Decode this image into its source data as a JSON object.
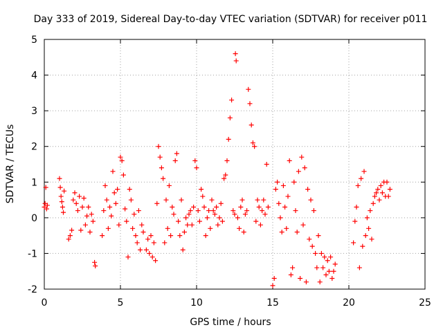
{
  "chart_data": {
    "type": "scatter",
    "title": "Day 333 of 2019, Sidereal Day-to-day VTEC variation (SDTVAR) for receiver p011",
    "xlabel": "GPS time / hours",
    "ylabel": "SDTVAR / TECUs",
    "xlim": [
      0,
      25
    ],
    "ylim": [
      -2,
      5
    ],
    "xticks": [
      0,
      5,
      10,
      15,
      20,
      25
    ],
    "xtick_labels": [
      "0",
      "5",
      "10",
      "15",
      "20",
      "25"
    ],
    "yticks": [
      -2,
      -1,
      0,
      1,
      2,
      3,
      4,
      5
    ],
    "ytick_labels": [
      "-2",
      "-1",
      "0",
      "1",
      "2",
      "3",
      "4",
      "5"
    ],
    "grid": true,
    "marker": "plus",
    "marker_color": "#ff0000",
    "series": [
      {
        "name": "SDTVAR",
        "points": [
          [
            0.0,
            0.3
          ],
          [
            0.05,
            0.4
          ],
          [
            0.1,
            0.85
          ],
          [
            0.15,
            0.25
          ],
          [
            0.2,
            0.35
          ],
          [
            1.0,
            1.1
          ],
          [
            1.05,
            0.85
          ],
          [
            1.1,
            0.6
          ],
          [
            1.15,
            0.45
          ],
          [
            1.2,
            0.3
          ],
          [
            1.25,
            0.15
          ],
          [
            1.3,
            0.75
          ],
          [
            1.6,
            -0.6
          ],
          [
            1.7,
            -0.5
          ],
          [
            1.8,
            -0.35
          ],
          [
            1.9,
            0.5
          ],
          [
            2.0,
            0.7
          ],
          [
            2.1,
            0.4
          ],
          [
            2.2,
            0.2
          ],
          [
            2.3,
            0.6
          ],
          [
            2.4,
            -0.35
          ],
          [
            2.5,
            0.3
          ],
          [
            2.6,
            0.55
          ],
          [
            2.7,
            -0.2
          ],
          [
            2.8,
            0.05
          ],
          [
            2.9,
            0.3
          ],
          [
            3.0,
            -0.4
          ],
          [
            3.1,
            0.1
          ],
          [
            3.2,
            -0.1
          ],
          [
            3.3,
            -1.25
          ],
          [
            3.35,
            -1.35
          ],
          [
            3.8,
            -0.5
          ],
          [
            3.9,
            0.2
          ],
          [
            4.0,
            0.9
          ],
          [
            4.1,
            0.5
          ],
          [
            4.2,
            -0.3
          ],
          [
            4.3,
            0.3
          ],
          [
            4.4,
            0.05
          ],
          [
            4.5,
            1.3
          ],
          [
            4.6,
            0.7
          ],
          [
            4.7,
            0.4
          ],
          [
            4.8,
            0.8
          ],
          [
            4.9,
            -0.2
          ],
          [
            5.0,
            1.7
          ],
          [
            5.1,
            1.6
          ],
          [
            5.2,
            1.2
          ],
          [
            5.3,
            0.25
          ],
          [
            5.4,
            -0.1
          ],
          [
            5.5,
            -1.1
          ],
          [
            5.6,
            0.8
          ],
          [
            5.7,
            0.5
          ],
          [
            5.8,
            -0.3
          ],
          [
            5.9,
            0.1
          ],
          [
            6.0,
            -0.5
          ],
          [
            6.1,
            -0.7
          ],
          [
            6.2,
            0.2
          ],
          [
            6.3,
            -0.9
          ],
          [
            6.4,
            -0.2
          ],
          [
            6.5,
            -0.4
          ],
          [
            6.7,
            -0.9
          ],
          [
            6.8,
            -0.6
          ],
          [
            6.9,
            -1.0
          ],
          [
            7.0,
            -0.5
          ],
          [
            7.1,
            -1.1
          ],
          [
            7.2,
            -0.7
          ],
          [
            7.3,
            -1.2
          ],
          [
            7.4,
            0.4
          ],
          [
            7.5,
            2.0
          ],
          [
            7.6,
            1.7
          ],
          [
            7.7,
            1.4
          ],
          [
            7.8,
            1.1
          ],
          [
            7.9,
            -0.7
          ],
          [
            8.0,
            0.5
          ],
          [
            8.1,
            -0.3
          ],
          [
            8.2,
            0.9
          ],
          [
            8.3,
            -0.5
          ],
          [
            8.4,
            0.3
          ],
          [
            8.5,
            0.1
          ],
          [
            8.6,
            1.6
          ],
          [
            8.7,
            1.8
          ],
          [
            8.8,
            -0.1
          ],
          [
            8.9,
            -0.5
          ],
          [
            9.0,
            0.5
          ],
          [
            9.1,
            -0.9
          ],
          [
            9.2,
            -0.4
          ],
          [
            9.3,
            0.0
          ],
          [
            9.4,
            -0.2
          ],
          [
            9.5,
            0.1
          ],
          [
            9.6,
            0.2
          ],
          [
            9.7,
            -0.2
          ],
          [
            9.8,
            0.3
          ],
          [
            9.9,
            1.6
          ],
          [
            10.0,
            1.4
          ],
          [
            10.1,
            0.2
          ],
          [
            10.2,
            -0.1
          ],
          [
            10.3,
            0.8
          ],
          [
            10.4,
            0.6
          ],
          [
            10.5,
            0.3
          ],
          [
            10.6,
            -0.5
          ],
          [
            10.7,
            0.0
          ],
          [
            10.8,
            0.2
          ],
          [
            10.9,
            -0.3
          ],
          [
            11.0,
            0.5
          ],
          [
            11.1,
            0.2
          ],
          [
            11.2,
            0.1
          ],
          [
            11.3,
            0.3
          ],
          [
            11.4,
            -0.2
          ],
          [
            11.5,
            0.0
          ],
          [
            11.6,
            0.4
          ],
          [
            11.7,
            -0.1
          ],
          [
            11.8,
            1.1
          ],
          [
            11.9,
            1.2
          ],
          [
            12.0,
            1.6
          ],
          [
            12.1,
            2.2
          ],
          [
            12.2,
            2.8
          ],
          [
            12.3,
            3.3
          ],
          [
            12.4,
            0.2
          ],
          [
            12.5,
            0.1
          ],
          [
            12.55,
            4.6
          ],
          [
            12.6,
            4.4
          ],
          [
            12.7,
            0.0
          ],
          [
            12.8,
            -0.3
          ],
          [
            12.9,
            0.3
          ],
          [
            13.0,
            0.5
          ],
          [
            13.1,
            -0.4
          ],
          [
            13.2,
            0.1
          ],
          [
            13.3,
            0.2
          ],
          [
            13.4,
            3.6
          ],
          [
            13.5,
            3.2
          ],
          [
            13.6,
            2.6
          ],
          [
            13.7,
            2.1
          ],
          [
            13.8,
            2.0
          ],
          [
            13.9,
            -0.1
          ],
          [
            14.0,
            0.5
          ],
          [
            14.1,
            0.3
          ],
          [
            14.2,
            -0.2
          ],
          [
            14.3,
            0.2
          ],
          [
            14.4,
            0.5
          ],
          [
            14.5,
            0.1
          ],
          [
            14.6,
            1.5
          ],
          [
            14.7,
            0.3
          ],
          [
            15.0,
            -1.9
          ],
          [
            15.1,
            -1.7
          ],
          [
            15.2,
            0.8
          ],
          [
            15.3,
            1.0
          ],
          [
            15.4,
            0.4
          ],
          [
            15.5,
            0.0
          ],
          [
            15.6,
            -0.4
          ],
          [
            15.7,
            0.9
          ],
          [
            15.8,
            0.3
          ],
          [
            15.9,
            -0.3
          ],
          [
            16.0,
            0.6
          ],
          [
            16.1,
            1.6
          ],
          [
            16.2,
            -1.6
          ],
          [
            16.3,
            -1.4
          ],
          [
            16.4,
            1.0
          ],
          [
            16.5,
            0.2
          ],
          [
            16.6,
            -0.4
          ],
          [
            16.7,
            1.3
          ],
          [
            16.8,
            -1.7
          ],
          [
            16.9,
            1.7
          ],
          [
            17.0,
            -0.2
          ],
          [
            17.1,
            1.4
          ],
          [
            17.2,
            -1.8
          ],
          [
            17.3,
            0.8
          ],
          [
            17.4,
            -0.6
          ],
          [
            17.5,
            0.5
          ],
          [
            17.6,
            -0.8
          ],
          [
            17.7,
            0.2
          ],
          [
            17.8,
            -1.0
          ],
          [
            17.9,
            -1.4
          ],
          [
            18.0,
            -0.5
          ],
          [
            18.1,
            -1.8
          ],
          [
            18.2,
            -1.0
          ],
          [
            18.3,
            -1.4
          ],
          [
            18.4,
            -1.1
          ],
          [
            18.5,
            -1.6
          ],
          [
            18.6,
            -1.2
          ],
          [
            18.7,
            -1.5
          ],
          [
            18.8,
            -1.1
          ],
          [
            18.9,
            -1.7
          ],
          [
            19.0,
            -1.5
          ],
          [
            19.1,
            -1.3
          ],
          [
            20.3,
            -0.7
          ],
          [
            20.4,
            -0.1
          ],
          [
            20.5,
            0.3
          ],
          [
            20.6,
            0.9
          ],
          [
            20.7,
            -1.4
          ],
          [
            20.8,
            1.1
          ],
          [
            20.9,
            -0.8
          ],
          [
            21.0,
            1.3
          ],
          [
            21.1,
            -0.5
          ],
          [
            21.2,
            0.0
          ],
          [
            21.3,
            -0.3
          ],
          [
            21.4,
            0.2
          ],
          [
            21.5,
            -0.6
          ],
          [
            21.6,
            0.4
          ],
          [
            21.7,
            0.6
          ],
          [
            21.8,
            0.7
          ],
          [
            21.9,
            0.8
          ],
          [
            22.0,
            0.5
          ],
          [
            22.1,
            0.9
          ],
          [
            22.2,
            0.7
          ],
          [
            22.3,
            1.0
          ],
          [
            22.4,
            0.6
          ],
          [
            22.5,
            1.0
          ],
          [
            22.6,
            0.6
          ],
          [
            22.7,
            0.8
          ]
        ]
      }
    ]
  }
}
